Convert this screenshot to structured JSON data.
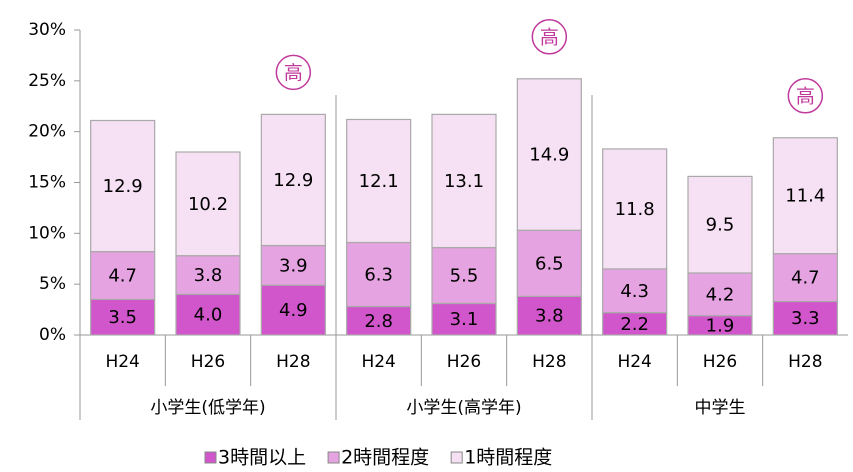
{
  "chart_data": {
    "type": "stacked_bar",
    "categories": [
      "H24",
      "H26",
      "H28",
      "H24",
      "H26",
      "H28",
      "H24",
      "H26",
      "H28"
    ],
    "groups": [
      "小学生(低学年)",
      "小学生(高学年)",
      "中学生"
    ],
    "series": [
      {
        "name": "3時間以上",
        "color": "#d256cb",
        "values": [
          3.5,
          4.0,
          4.9,
          2.8,
          3.1,
          3.8,
          2.2,
          1.9,
          3.3
        ],
        "value_labels": [
          "3.5",
          "4.0",
          "4.9",
          "2.8",
          "3.1",
          "3.8",
          "2.2",
          "1.9",
          "3.3"
        ]
      },
      {
        "name": "2時間程度",
        "color": "#e6a3e1",
        "values": [
          4.7,
          3.8,
          3.9,
          6.3,
          5.5,
          6.5,
          4.3,
          4.2,
          4.7
        ],
        "value_labels": [
          "4.7",
          "3.8",
          "3.9",
          "6.3",
          "5.5",
          "6.5",
          "4.3",
          "4.2",
          "4.7"
        ]
      },
      {
        "name": "1時間程度",
        "color": "#f6e0f4",
        "values": [
          12.9,
          10.2,
          12.9,
          12.1,
          13.1,
          14.9,
          11.8,
          9.5,
          11.4
        ],
        "value_labels": [
          "12.9",
          "10.2",
          "12.9",
          "12.1",
          "13.1",
          "14.9",
          "11.8",
          "9.5",
          "11.4"
        ]
      }
    ],
    "annotations": [
      {
        "label": "高",
        "x": 2
      },
      {
        "label": "高",
        "x": 5
      },
      {
        "label": "高",
        "x": 8
      }
    ],
    "ylim": [
      0,
      30
    ],
    "yticks": [
      {
        "value": 0,
        "label": "0%"
      },
      {
        "value": 5,
        "label": "5%"
      },
      {
        "value": 10,
        "label": "10%"
      },
      {
        "value": 15,
        "label": "15%"
      },
      {
        "value": 20,
        "label": "20%"
      },
      {
        "value": 25,
        "label": "25%"
      },
      {
        "value": 30,
        "label": "30%"
      }
    ],
    "legend": "bottom"
  }
}
